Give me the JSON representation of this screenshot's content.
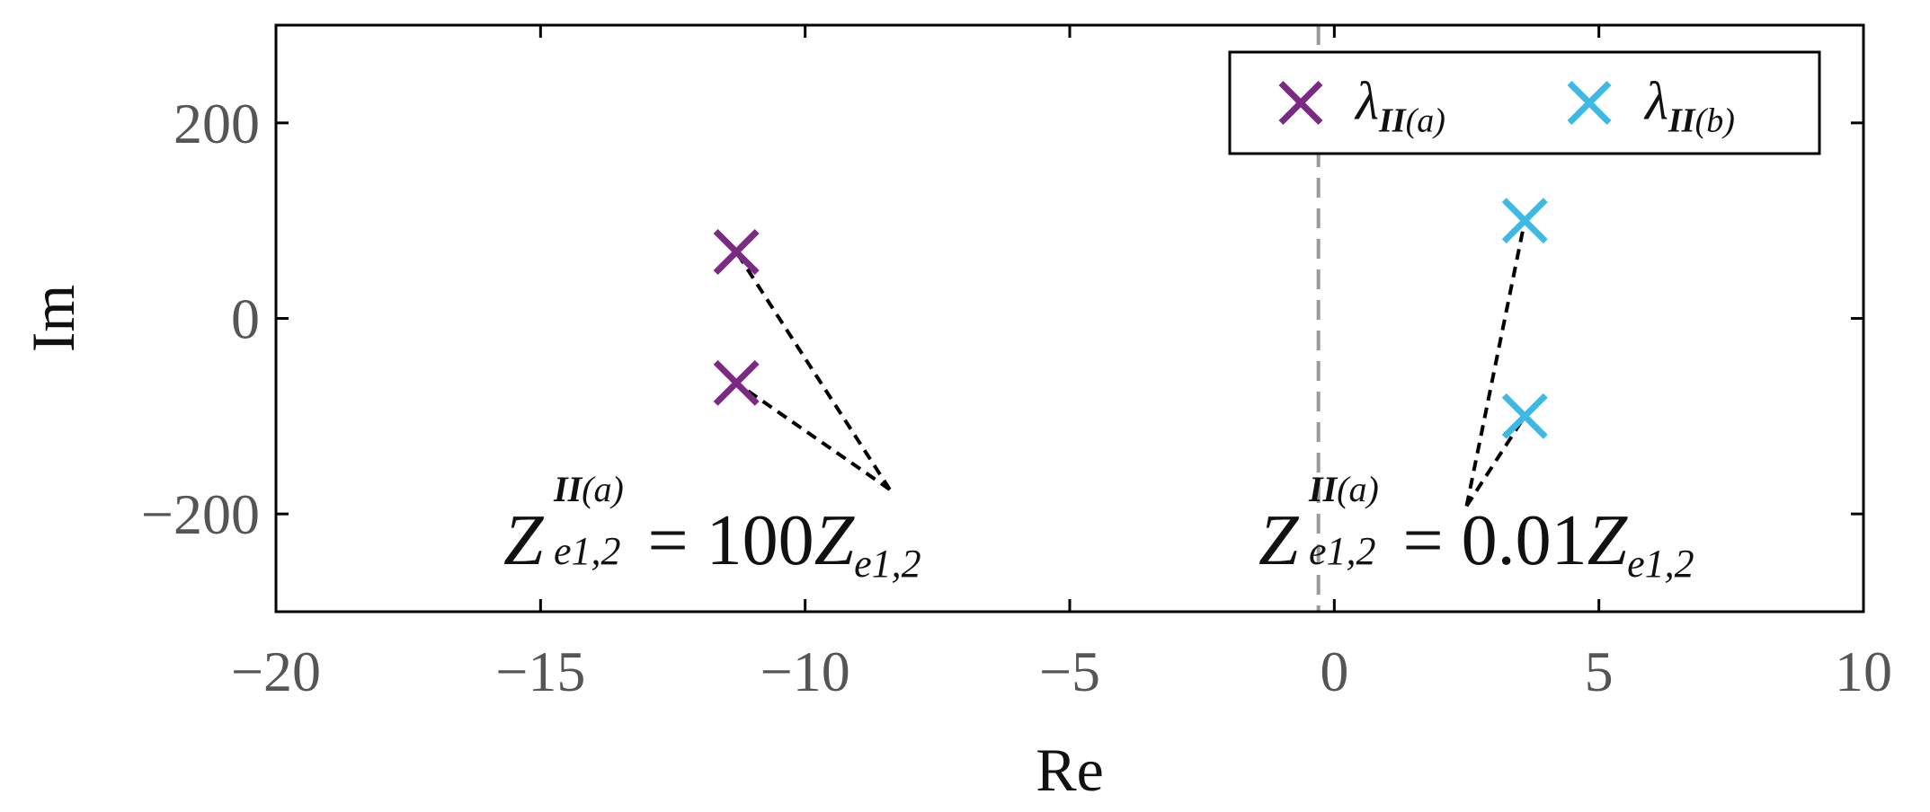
{
  "chart_data": {
    "type": "scatter",
    "xlabel": "Re",
    "ylabel": "Im",
    "xlim": [
      -20,
      10
    ],
    "ylim": [
      -300,
      300
    ],
    "xticks": [
      -20,
      -15,
      -10,
      -5,
      0,
      5,
      10
    ],
    "yticks": [
      -200,
      0,
      200
    ],
    "xtick_labels": [
      "−20",
      "−15",
      "−10",
      "−5",
      "0",
      "5",
      "10"
    ],
    "ytick_labels": [
      "−200",
      "0",
      "200"
    ],
    "grid": false,
    "legend": "top-right",
    "colors": {
      "a": "#7b2a83",
      "b": "#3db9e6",
      "guide": "#999999",
      "annotation_line": "#000000"
    },
    "marker": "x",
    "series": [
      {
        "key": "a",
        "name_main": "λ",
        "name_sub_bold": "II",
        "name_sub_rest": "(a)",
        "points": [
          [
            -11.3,
            68
          ],
          [
            -11.3,
            -66
          ]
        ]
      },
      {
        "key": "b",
        "name_main": "λ",
        "name_sub_bold": "II",
        "name_sub_rest": "(b)",
        "points": [
          [
            3.6,
            100
          ],
          [
            3.6,
            -100
          ]
        ]
      }
    ],
    "vertical_line": {
      "x": -0.3,
      "style": "dashed"
    },
    "annotations": [
      {
        "key": "left",
        "z": "Z",
        "sup_bold": "II",
        "sup_rest": "(a)",
        "sub": "e1,2",
        "equals": "=",
        "coef": "100",
        "rhs_z": "Z",
        "rhs_sub": "e1,2",
        "anchor": [
          -8.4,
          -175
        ],
        "targets": [
          [
            -11.3,
            68
          ],
          [
            -11.3,
            -66
          ]
        ]
      },
      {
        "key": "right",
        "z": "Z",
        "sup_bold": "II",
        "sup_rest": "(a)",
        "sub": "e1,2",
        "equals": "=",
        "coef": "0.01",
        "rhs_z": "Z",
        "rhs_sub": "e1,2",
        "anchor": [
          2.5,
          -192
        ],
        "targets": [
          [
            3.6,
            100
          ],
          [
            3.6,
            -100
          ]
        ]
      }
    ]
  }
}
